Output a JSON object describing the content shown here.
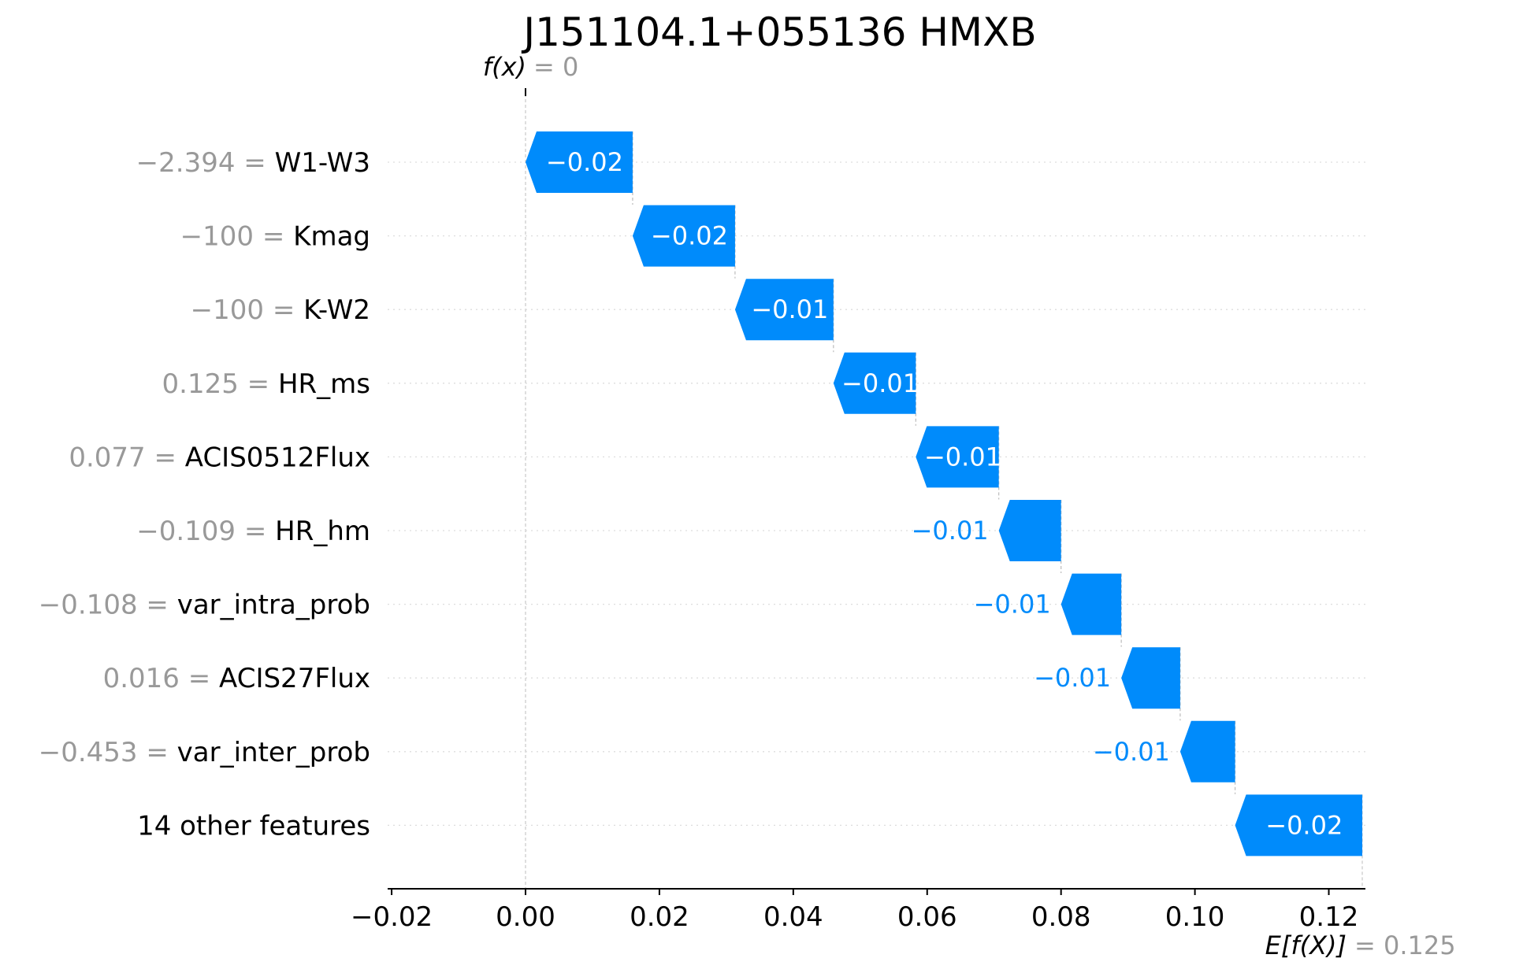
{
  "chart_data": {
    "type": "waterfall",
    "title": "J151104.1+055136 HMXB",
    "fx_label": "f(x)",
    "fx_value_text": "= 0",
    "fx_value": 0,
    "efx_label": "E[f(X)]",
    "efx_value_text": "= 0.125",
    "efx_value": 0.125,
    "xlim": [
      -0.021,
      0.1235
    ],
    "xticks": [
      -0.02,
      0.0,
      0.02,
      0.04,
      0.06,
      0.08,
      0.1,
      0.12
    ],
    "xtick_labels": [
      "−0.02",
      "0.00",
      "0.02",
      "0.04",
      "0.06",
      "0.08",
      "0.10",
      "0.12"
    ],
    "colors": {
      "negative": "#008bfb",
      "grid": "#cccccc",
      "axis": "#000000"
    },
    "features": [
      {
        "value": "−2.394 = ",
        "name": "W1-W3",
        "start": 0.016,
        "end": 0.0,
        "label": "−0.02"
      },
      {
        "value": "−100 = ",
        "name": "Kmag",
        "start": 0.0313,
        "end": 0.016,
        "label": "−0.02"
      },
      {
        "value": "−100 = ",
        "name": "K-W2",
        "start": 0.046,
        "end": 0.0313,
        "label": "−0.01"
      },
      {
        "value": "0.125 = ",
        "name": "HR_ms",
        "start": 0.0583,
        "end": 0.046,
        "label": "−0.01"
      },
      {
        "value": "0.077 = ",
        "name": "ACIS0512Flux",
        "start": 0.0707,
        "end": 0.0583,
        "label": "−0.01"
      },
      {
        "value": "−0.109 = ",
        "name": "HR_hm",
        "start": 0.08,
        "end": 0.0707,
        "label": "−0.01"
      },
      {
        "value": "−0.108 = ",
        "name": "var_intra_prob",
        "start": 0.089,
        "end": 0.08,
        "label": "−0.01"
      },
      {
        "value": "0.016 = ",
        "name": "ACIS27Flux",
        "start": 0.0978,
        "end": 0.089,
        "label": "−0.01"
      },
      {
        "value": "−0.453 = ",
        "name": "var_inter_prob",
        "start": 0.106,
        "end": 0.0978,
        "label": "−0.01"
      },
      {
        "value": "",
        "name": "14 other features",
        "start": 0.125,
        "end": 0.106,
        "label": "−0.02"
      }
    ]
  }
}
